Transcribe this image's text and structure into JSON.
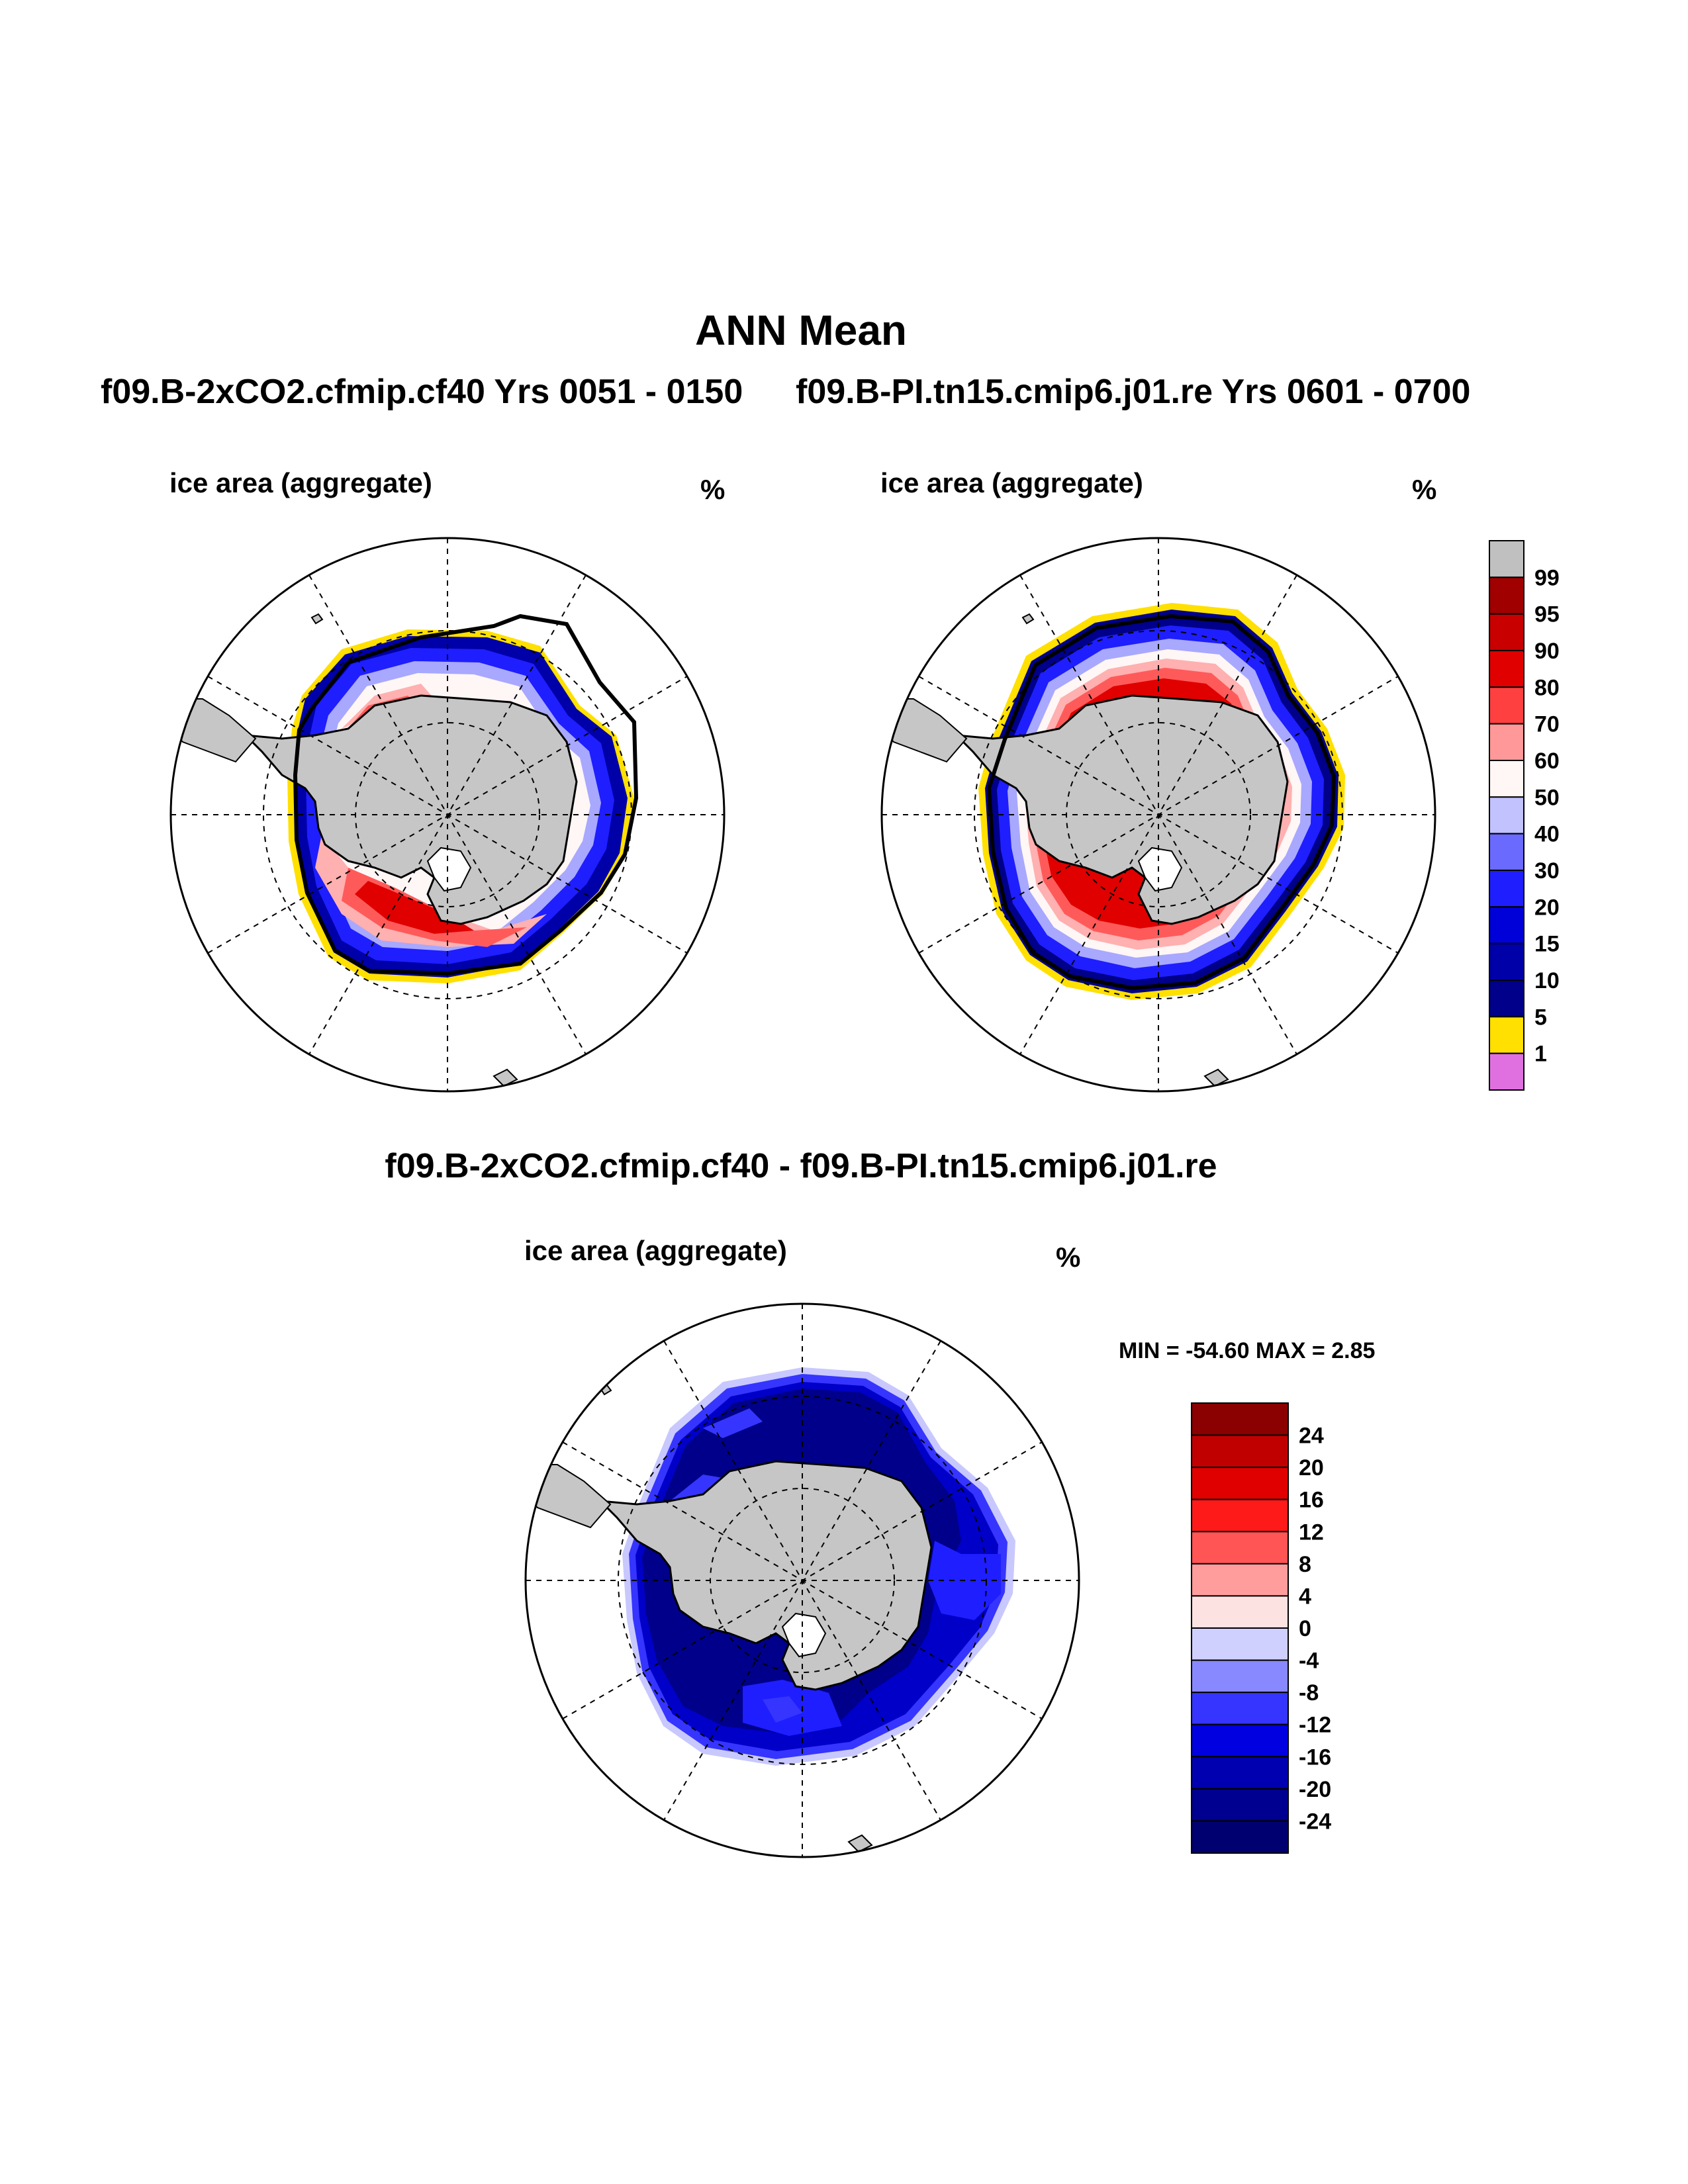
{
  "title": "ANN Mean",
  "case1_title": "f09.B-2xCO2.cfmip.cf40  Yrs 0051 - 0150",
  "case2_title": "f09.B-PI.tn15.cmip6.j01.re  Yrs 0601 - 0700",
  "diff_title": "f09.B-2xCO2.cfmip.cf40 - f09.B-PI.tn15.cmip6.j01.re",
  "panels": [
    {
      "variable": "ice area  (aggregate)",
      "units": "%"
    },
    {
      "variable": "ice area  (aggregate)",
      "units": "%"
    },
    {
      "variable": "ice area  (aggregate)",
      "units": "%"
    }
  ],
  "minmax": "MIN = -54.60 MAX =   2.85",
  "colorbar_main": {
    "labels": [
      "99",
      "95",
      "90",
      "80",
      "70",
      "60",
      "50",
      "40",
      "30",
      "20",
      "15",
      "10",
      "5",
      "1"
    ],
    "colors": [
      "#c0c0c0",
      "#a00000",
      "#c80000",
      "#e00000",
      "#ff4040",
      "#ff9999",
      "#fff6f6",
      "#c2c2ff",
      "#6a6aff",
      "#1e1eff",
      "#0000d8",
      "#0000a8",
      "#00008a",
      "#ffe000",
      "#e070e0"
    ]
  },
  "colorbar_diff": {
    "labels": [
      "24",
      "20",
      "16",
      "12",
      "8",
      "4",
      "0",
      "-4",
      "-8",
      "-12",
      "-16",
      "-20",
      "-24"
    ],
    "colors": [
      "#8b0000",
      "#c00000",
      "#e00000",
      "#ff1a1a",
      "#ff5555",
      "#ff9d9d",
      "#fde2e2",
      "#d0d0ff",
      "#8888ff",
      "#3535ff",
      "#0000e0",
      "#0000b0",
      "#000090",
      "#000070"
    ]
  },
  "map_colors": {
    "land": "#c6c6c6",
    "high_conc": "#e00000",
    "mid_conc": "#ff5a5a",
    "low_red": "#ffb0b0",
    "white_band": "#fff6f6",
    "light_blue": "#a8a8ff",
    "blue": "#1e1eff",
    "dark_blue": "#0000a8",
    "edge_yellow": "#ffe000",
    "diff_dark": "#00008a",
    "diff_mid": "#0000c8",
    "diff_light": "#3535ff",
    "diff_pale": "#c8c8ff"
  }
}
